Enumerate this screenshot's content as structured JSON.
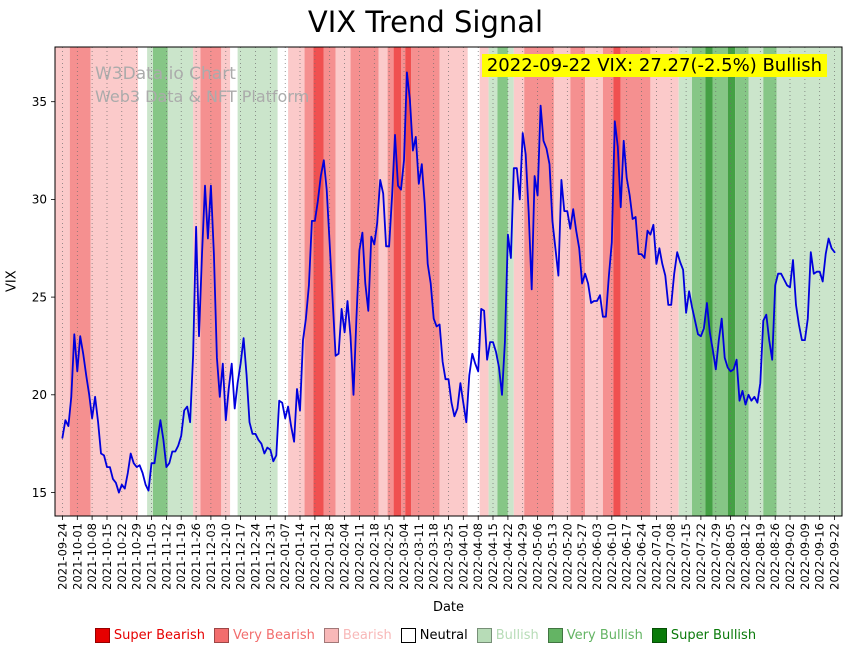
{
  "title": "VIX Trend Signal",
  "watermark": {
    "line1": "W3Data.io Chart",
    "line2": "Web3 Data & NFT Platform"
  },
  "annotation": {
    "text": "2022-09-22 VIX: 27.27(-2.5%) Bullish",
    "bg_color": "#ffff00"
  },
  "chart_data": {
    "type": "line",
    "title": "VIX Trend Signal",
    "xlabel": "Date",
    "ylabel": "VIX",
    "ylim": [
      13.8,
      37.8
    ],
    "x_domain": [
      -0.5,
      52.5
    ],
    "y_ticks": [
      15,
      20,
      25,
      30,
      35
    ],
    "grid": "vertical-dotted",
    "legend_position": "bottom",
    "x_tick_labels": [
      "2021-09-24",
      "2021-10-01",
      "2021-10-08",
      "2021-10-15",
      "2021-10-22",
      "2021-10-29",
      "2021-11-05",
      "2021-11-12",
      "2021-11-19",
      "2021-11-26",
      "2021-12-03",
      "2021-12-10",
      "2021-12-17",
      "2021-12-24",
      "2021-12-31",
      "2022-01-07",
      "2022-01-14",
      "2022-01-21",
      "2022-01-28",
      "2022-02-04",
      "2022-02-11",
      "2022-02-18",
      "2022-02-25",
      "2022-03-04",
      "2022-03-11",
      "2022-03-18",
      "2022-03-25",
      "2022-04-01",
      "2022-04-08",
      "2022-04-15",
      "2022-04-22",
      "2022-04-29",
      "2022-05-06",
      "2022-05-13",
      "2022-05-20",
      "2022-05-27",
      "2022-06-03",
      "2022-06-10",
      "2022-06-17",
      "2022-06-24",
      "2022-07-01",
      "2022-07-08",
      "2022-07-15",
      "2022-07-22",
      "2022-07-29",
      "2022-08-05",
      "2022-08-12",
      "2022-08-19",
      "2022-08-26",
      "2022-09-02",
      "2022-09-09",
      "2022-09-16",
      "2022-09-22"
    ],
    "series": [
      {
        "name": "VIX",
        "color": "#0000dd",
        "x_start": 0,
        "x_step": 0.2,
        "values": [
          17.8,
          18.7,
          18.4,
          19.9,
          23.1,
          21.2,
          23.0,
          22.1,
          21.0,
          20.0,
          18.8,
          19.9,
          18.6,
          17.0,
          16.9,
          16.3,
          16.3,
          15.7,
          15.5,
          15.0,
          15.4,
          15.2,
          16.0,
          17.0,
          16.5,
          16.3,
          16.4,
          16.0,
          15.4,
          15.1,
          16.5,
          16.5,
          17.7,
          18.7,
          17.7,
          16.3,
          16.5,
          17.1,
          17.1,
          17.4,
          17.9,
          19.2,
          19.4,
          18.6,
          22.0,
          28.6,
          23.0,
          27.2,
          30.7,
          28.0,
          30.7,
          27.2,
          21.9,
          19.9,
          21.6,
          18.7,
          20.3,
          21.6,
          19.3,
          20.6,
          21.6,
          22.9,
          21.0,
          18.6,
          18.0,
          18.0,
          17.7,
          17.5,
          17.0,
          17.3,
          17.2,
          16.6,
          16.9,
          19.7,
          19.6,
          18.8,
          19.4,
          18.4,
          17.6,
          20.3,
          19.2,
          22.8,
          23.9,
          25.6,
          28.9,
          28.9,
          29.9,
          31.2,
          32.0,
          30.5,
          27.7,
          24.8,
          22.0,
          22.1,
          24.4,
          23.2,
          24.8,
          23.0,
          20.0,
          23.9,
          27.4,
          28.3,
          25.7,
          24.3,
          28.1,
          27.7,
          28.8,
          31.0,
          30.3,
          27.6,
          27.6,
          30.2,
          33.3,
          30.7,
          30.5,
          32.0,
          36.5,
          35.1,
          32.5,
          33.2,
          30.8,
          31.8,
          29.8,
          26.7,
          25.7,
          23.9,
          23.5,
          23.6,
          21.7,
          20.8,
          20.8,
          19.6,
          18.9,
          19.3,
          20.6,
          19.6,
          18.6,
          21.0,
          22.1,
          21.6,
          21.2,
          24.4,
          24.3,
          21.8,
          22.7,
          22.7,
          22.2,
          21.4,
          20.0,
          22.7,
          28.2,
          27.0,
          31.6,
          31.6,
          30.0,
          33.4,
          32.3,
          29.3,
          25.4,
          31.2,
          30.2,
          34.8,
          33.0,
          32.6,
          31.8,
          28.9,
          27.5,
          26.1,
          31.0,
          29.4,
          29.4,
          28.5,
          29.5,
          28.4,
          27.5,
          25.7,
          26.2,
          25.7,
          24.7,
          24.8,
          24.8,
          25.1,
          24.0,
          24.0,
          26.1,
          27.8,
          34.0,
          32.7,
          29.6,
          33.0,
          31.1,
          30.2,
          29.0,
          29.1,
          27.2,
          27.2,
          27.0,
          28.4,
          28.2,
          28.7,
          26.7,
          27.5,
          26.7,
          26.1,
          24.6,
          24.6,
          26.2,
          27.3,
          26.8,
          26.4,
          24.2,
          25.3,
          24.5,
          23.8,
          23.1,
          23.0,
          23.4,
          24.7,
          23.2,
          22.3,
          21.3,
          22.8,
          23.9,
          21.9,
          21.4,
          21.2,
          21.3,
          21.8,
          19.7,
          20.2,
          19.5,
          20.0,
          19.7,
          19.9,
          19.6,
          20.6,
          23.8,
          24.1,
          22.8,
          21.8,
          25.6,
          26.2,
          26.2,
          25.9,
          25.6,
          25.5,
          26.9,
          24.6,
          23.6,
          22.8,
          22.8,
          23.9,
          27.3,
          26.2,
          26.3,
          26.3,
          25.8,
          27.2,
          28.0,
          27.5,
          27.3
        ]
      }
    ],
    "signal_colors": {
      "super_bearish": "#f05050",
      "very_bearish": "#f59090",
      "bearish": "#fbcaca",
      "neutral": "#ffffff",
      "bullish": "#cbe5cb",
      "very_bullish": "#86c686",
      "super_bullish": "#44a044"
    },
    "signal_bands": [
      {
        "from": -0.5,
        "to": 0.5,
        "signal": "bearish"
      },
      {
        "from": 0.5,
        "to": 1.9,
        "signal": "very_bearish"
      },
      {
        "from": 1.9,
        "to": 5.1,
        "signal": "bearish"
      },
      {
        "from": 5.1,
        "to": 5.7,
        "signal": "neutral"
      },
      {
        "from": 5.7,
        "to": 6.1,
        "signal": "bullish"
      },
      {
        "from": 6.1,
        "to": 7.1,
        "signal": "very_bullish"
      },
      {
        "from": 7.1,
        "to": 8.8,
        "signal": "bullish"
      },
      {
        "from": 8.8,
        "to": 9.3,
        "signal": "bearish"
      },
      {
        "from": 9.3,
        "to": 10.7,
        "signal": "very_bearish"
      },
      {
        "from": 10.7,
        "to": 11.3,
        "signal": "bearish"
      },
      {
        "from": 11.3,
        "to": 11.8,
        "signal": "neutral"
      },
      {
        "from": 11.8,
        "to": 14.5,
        "signal": "bullish"
      },
      {
        "from": 14.5,
        "to": 15.2,
        "signal": "neutral"
      },
      {
        "from": 15.2,
        "to": 16.3,
        "signal": "bearish"
      },
      {
        "from": 16.3,
        "to": 16.9,
        "signal": "very_bearish"
      },
      {
        "from": 16.9,
        "to": 17.6,
        "signal": "super_bearish"
      },
      {
        "from": 17.6,
        "to": 18.4,
        "signal": "very_bearish"
      },
      {
        "from": 18.4,
        "to": 19.4,
        "signal": "bearish"
      },
      {
        "from": 19.4,
        "to": 21.3,
        "signal": "very_bearish"
      },
      {
        "from": 21.3,
        "to": 21.9,
        "signal": "bearish"
      },
      {
        "from": 21.9,
        "to": 22.3,
        "signal": "very_bearish"
      },
      {
        "from": 22.3,
        "to": 22.8,
        "signal": "super_bearish"
      },
      {
        "from": 22.8,
        "to": 23.1,
        "signal": "very_bearish"
      },
      {
        "from": 23.1,
        "to": 23.5,
        "signal": "super_bearish"
      },
      {
        "from": 23.5,
        "to": 25.4,
        "signal": "very_bearish"
      },
      {
        "from": 25.4,
        "to": 27.3,
        "signal": "bearish"
      },
      {
        "from": 27.3,
        "to": 28.1,
        "signal": "neutral"
      },
      {
        "from": 28.1,
        "to": 28.7,
        "signal": "bearish"
      },
      {
        "from": 28.7,
        "to": 29.3,
        "signal": "bullish"
      },
      {
        "from": 29.3,
        "to": 30.0,
        "signal": "very_bullish"
      },
      {
        "from": 30.0,
        "to": 30.4,
        "signal": "bullish"
      },
      {
        "from": 30.4,
        "to": 31.1,
        "signal": "bearish"
      },
      {
        "from": 31.1,
        "to": 33.1,
        "signal": "very_bearish"
      },
      {
        "from": 33.1,
        "to": 34.2,
        "signal": "bearish"
      },
      {
        "from": 34.2,
        "to": 35.2,
        "signal": "very_bearish"
      },
      {
        "from": 35.2,
        "to": 36.4,
        "signal": "bearish"
      },
      {
        "from": 36.4,
        "to": 37.1,
        "signal": "very_bearish"
      },
      {
        "from": 37.1,
        "to": 37.6,
        "signal": "super_bearish"
      },
      {
        "from": 37.6,
        "to": 39.6,
        "signal": "very_bearish"
      },
      {
        "from": 39.6,
        "to": 41.5,
        "signal": "bearish"
      },
      {
        "from": 41.5,
        "to": 42.4,
        "signal": "bullish"
      },
      {
        "from": 42.4,
        "to": 43.3,
        "signal": "very_bullish"
      },
      {
        "from": 43.3,
        "to": 43.8,
        "signal": "super_bullish"
      },
      {
        "from": 43.8,
        "to": 44.8,
        "signal": "very_bullish"
      },
      {
        "from": 44.8,
        "to": 45.3,
        "signal": "super_bullish"
      },
      {
        "from": 45.3,
        "to": 46.2,
        "signal": "very_bullish"
      },
      {
        "from": 46.2,
        "to": 47.2,
        "signal": "bullish"
      },
      {
        "from": 47.2,
        "to": 48.1,
        "signal": "very_bullish"
      },
      {
        "from": 48.1,
        "to": 52.5,
        "signal": "bullish"
      }
    ],
    "legend": [
      {
        "label": "Super Bearish",
        "swatch": "#e60000",
        "text_color": "#e60000"
      },
      {
        "label": "Very Bearish",
        "swatch": "#f26d6d",
        "text_color": "#f26d6d"
      },
      {
        "label": "Bearish",
        "swatch": "#f8b8b8",
        "text_color": "#f8b8b8"
      },
      {
        "label": "Neutral",
        "swatch": "#ffffff",
        "text_color": "#000000"
      },
      {
        "label": "Bullish",
        "swatch": "#b7dcb7",
        "text_color": "#b7dcb7"
      },
      {
        "label": "Very Bullish",
        "swatch": "#64b464",
        "text_color": "#64b464"
      },
      {
        "label": "Super Bullish",
        "swatch": "#0a7a0a",
        "text_color": "#0a7a0a"
      }
    ]
  }
}
